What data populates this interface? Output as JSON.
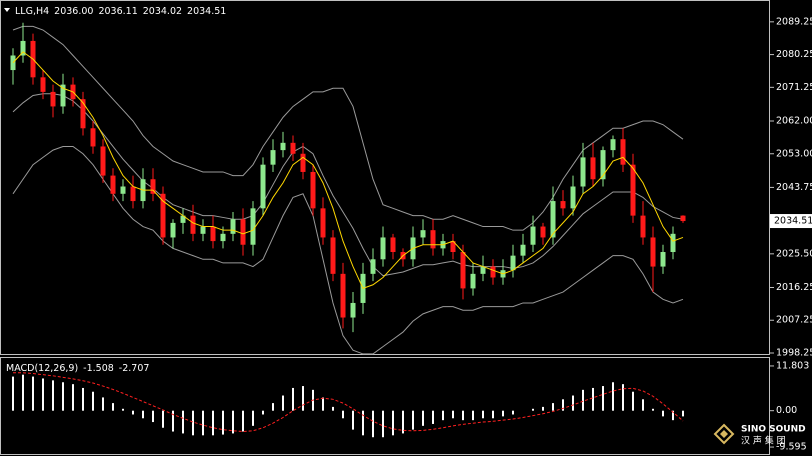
{
  "chart_data": [
    {
      "type": "candlestick",
      "title": "LLG,H4",
      "ohlc_labels": [
        {
          "value": 2036,
          "label": "2036.00"
        },
        2036.11,
        2034.02,
        2034.51
      ],
      "up_color": "#8ee88e",
      "down_color": "#ff1a1a",
      "open": [
        2076,
        2080,
        2084,
        2074,
        2070,
        2066,
        2072,
        2068,
        2060,
        2055,
        2047,
        2042,
        2044,
        2040,
        2046,
        2042,
        2030,
        2034,
        2036,
        2031,
        2033,
        2029,
        2031,
        2035,
        2028,
        2038,
        2050,
        2054,
        2056,
        2053,
        2048,
        2038,
        2030,
        2020,
        2008,
        2012,
        2020,
        2024,
        2030,
        2026,
        2024,
        2030,
        2032,
        2027,
        2029,
        2026,
        2016,
        2020,
        2022,
        2019,
        2021,
        2025,
        2028,
        2033,
        2030,
        2040,
        2038,
        2044,
        2052,
        2046,
        2054,
        2057,
        2050,
        2036,
        2030,
        2022,
        2026,
        2036
      ],
      "high": [
        2082,
        2089,
        2086,
        2076,
        2072,
        2075,
        2074,
        2070,
        2062,
        2057,
        2049,
        2046,
        2047,
        2049,
        2049,
        2044,
        2035,
        2038,
        2039,
        2035,
        2036,
        2033,
        2037,
        2038,
        2040,
        2052,
        2057,
        2059,
        2058,
        2056,
        2050,
        2041,
        2032,
        2023,
        2015,
        2023,
        2027,
        2033,
        2031,
        2027,
        2033,
        2035,
        2035,
        2031,
        2031,
        2028,
        2023,
        2025,
        2024,
        2024,
        2028,
        2031,
        2036,
        2034,
        2044,
        2043,
        2047,
        2056,
        2056,
        2055,
        2058,
        2060,
        2053,
        2040,
        2033,
        2028,
        2033,
        2036.11
      ],
      "low": [
        2072,
        2078,
        2072,
        2068,
        2063,
        2064,
        2066,
        2058,
        2053,
        2045,
        2040,
        2040,
        2038,
        2038,
        2040,
        2028,
        2027,
        2031,
        2029,
        2029,
        2027,
        2027,
        2029,
        2025,
        2025,
        2036,
        2048,
        2052,
        2051,
        2046,
        2036,
        2028,
        2018,
        2005,
        2004,
        2009,
        2018,
        2022,
        2024,
        2022,
        2022,
        2028,
        2025,
        2025,
        2024,
        2013,
        2014,
        2018,
        2017,
        2017,
        2019,
        2023,
        2026,
        2028,
        2028,
        2036,
        2036,
        2042,
        2044,
        2044,
        2052,
        2048,
        2034,
        2028,
        2015,
        2020,
        2024,
        2034.02
      ],
      "close": [
        2080,
        2084,
        2074,
        2070,
        2066,
        2072,
        2068,
        2060,
        2055,
        2047,
        2042,
        2044,
        2040,
        2046,
        2042,
        2030,
        2034,
        2036,
        2031,
        2033,
        2029,
        2031,
        2035,
        2028,
        2038,
        2050,
        2054,
        2056,
        2053,
        2048,
        2038,
        2030,
        2020,
        2008,
        2012,
        2020,
        2024,
        2030,
        2026,
        2024,
        2030,
        2032,
        2027,
        2029,
        2026,
        2016,
        2020,
        2022,
        2019,
        2021,
        2025,
        2028,
        2033,
        2030,
        2040,
        2038,
        2044,
        2052,
        2046,
        2054,
        2057,
        2050,
        2036,
        2030,
        2022,
        2026,
        2031,
        2034.51
      ],
      "bollinger": {
        "color": "#9a9a9a",
        "upper": [
          2087,
          2088,
          2088,
          2087,
          2085,
          2083,
          2080,
          2077,
          2074,
          2071,
          2068,
          2065,
          2062,
          2058,
          2055,
          2053,
          2051,
          2050,
          2049,
          2048,
          2048,
          2048,
          2047,
          2047,
          2050,
          2055,
          2059,
          2063,
          2066,
          2068,
          2070,
          2070,
          2071,
          2071,
          2066,
          2056,
          2046,
          2039,
          2038,
          2037,
          2036,
          2036,
          2035,
          2035,
          2036,
          2035,
          2034,
          2033,
          2033,
          2033,
          2032,
          2032,
          2034,
          2037,
          2041,
          2046,
          2050,
          2054,
          2056,
          2058,
          2060,
          2060,
          2061,
          2062,
          2062,
          2061,
          2059,
          2057
        ],
        "middle": [
          2064.5,
          2067,
          2069,
          2069.5,
          2069.5,
          2069,
          2067.5,
          2065,
          2062,
          2058.5,
          2055,
          2051.5,
          2048.5,
          2045.5,
          2043.5,
          2041,
          2039,
          2038,
          2037,
          2036,
          2036,
          2035.5,
          2035,
          2035,
          2036,
          2039.5,
          2044.5,
          2049.5,
          2053.5,
          2055,
          2053,
          2047,
          2041.5,
          2037,
          2032.5,
          2027,
          2022,
          2019.5,
          2020,
          2020.5,
          2021.5,
          2022.5,
          2022.5,
          2023,
          2023.5,
          2022.5,
          2022,
          2022,
          2022,
          2022,
          2021.5,
          2022,
          2023,
          2025,
          2027.5,
          2030.5,
          2033.5,
          2036.5,
          2038.5,
          2040.5,
          2042.5,
          2042.5,
          2042.5,
          2041,
          2038.5,
          2037,
          2035.5,
          2035
        ],
        "lower": [
          2042,
          2046,
          2050,
          2052,
          2054,
          2055,
          2055,
          2053,
          2050,
          2046,
          2042,
          2038,
          2035,
          2033,
          2032,
          2029,
          2027,
          2026,
          2025,
          2024,
          2024,
          2023,
          2023,
          2023,
          2022,
          2024,
          2030,
          2036,
          2041,
          2042,
          2036,
          2024,
          2012,
          2003,
          1999,
          1998,
          1998,
          2000,
          2002,
          2004,
          2007,
          2009,
          2010,
          2011,
          2011,
          2010,
          2010,
          2011,
          2011,
          2011,
          2011,
          2012,
          2012,
          2013,
          2014,
          2015,
          2017,
          2019,
          2021,
          2023,
          2025,
          2025,
          2024,
          2020,
          2015,
          2013,
          2012,
          2013
        ]
      },
      "ma": {
        "color": "#ffd800",
        "values": [
          2078,
          2081,
          2079,
          2076,
          2073,
          2071,
          2070,
          2067,
          2063,
          2058,
          2052,
          2047,
          2044,
          2043,
          2043,
          2040,
          2038,
          2036,
          2034,
          2033,
          2033,
          2032,
          2032,
          2031,
          2032,
          2036,
          2041,
          2045,
          2050,
          2052,
          2050,
          2045,
          2038,
          2029,
          2022,
          2016,
          2017,
          2019,
          2022,
          2025,
          2027,
          2028,
          2028,
          2028,
          2029,
          2026,
          2023,
          2022,
          2021,
          2020,
          2021,
          2023,
          2025,
          2027,
          2031,
          2034,
          2037,
          2042,
          2044,
          2047,
          2051,
          2052,
          2049,
          2045,
          2039,
          2033,
          2029,
          2030
        ]
      },
      "current_price": 2034.51,
      "ylim": [
        1997.7,
        2094.7
      ],
      "yticks": [
        2089.25,
        2080.25,
        2071.25,
        {
          "value": 2062,
          "label": "2062.00"
        },
        {
          "value": 2053,
          "label": "2053.00"
        },
        2043.75,
        {
          "value": 2025.5,
          "label": "2025.50"
        },
        2016.25,
        2007.25,
        1998.25
      ]
    },
    {
      "type": "macd",
      "title": "MACD(12,26,9)",
      "title_values": [
        -1.508,
        -2.707
      ],
      "histogram": {
        "color": "#ffffff",
        "values": [
          9,
          9.5,
          9,
          8.5,
          8,
          7.5,
          7,
          6,
          5,
          3.5,
          2,
          0.5,
          -1,
          -2,
          -3,
          -4.5,
          -5.5,
          -6,
          -6.5,
          -6.5,
          -6.5,
          -6.3,
          -6,
          -5.5,
          -4,
          -1,
          2,
          4,
          6,
          6.5,
          5.5,
          3.5,
          1,
          -2,
          -5,
          -6.5,
          -7,
          -7,
          -6.5,
          -6,
          -5,
          -4,
          -3.5,
          -2.5,
          -2,
          -2.5,
          -2.5,
          -2,
          -2,
          -1.5,
          -1,
          0,
          0.5,
          1,
          2,
          3,
          4,
          5.5,
          6,
          6.5,
          7.5,
          7,
          5,
          3,
          0.5,
          -1.5,
          -2.5,
          -1.508
        ]
      },
      "signal": {
        "color": "#ff2020",
        "values": [
          10,
          10,
          9.8,
          9.5,
          9.2,
          8.8,
          8.4,
          7.9,
          7.3,
          6.5,
          5.6,
          4.6,
          3.5,
          2.4,
          1.3,
          0.2,
          -1,
          -2,
          -3,
          -3.8,
          -4.5,
          -5,
          -5.3,
          -5.5,
          -5.3,
          -4.5,
          -3.3,
          -1.8,
          0,
          1.5,
          2.8,
          3.3,
          3,
          2,
          0.5,
          -1.2,
          -2.8,
          -4,
          -4.8,
          -5.2,
          -5.3,
          -5.2,
          -4.9,
          -4.5,
          -4,
          -3.6,
          -3.3,
          -3,
          -2.8,
          -2.5,
          -2.2,
          -1.8,
          -1.3,
          -0.8,
          -0.2,
          0.6,
          1.5,
          2.5,
          3.4,
          4.3,
          5.2,
          5.8,
          5.9,
          5.2,
          3.8,
          1.8,
          -0.4,
          -2.707
        ]
      },
      "ylim": [
        -10.9,
        13.9
      ],
      "yticks": [
        11.803,
        {
          "value": 0,
          "label": "0.00"
        },
        -9.595
      ]
    }
  ],
  "watermark": {
    "brand": "SINO SOUND",
    "subtitle": "汉 声 集 团"
  }
}
